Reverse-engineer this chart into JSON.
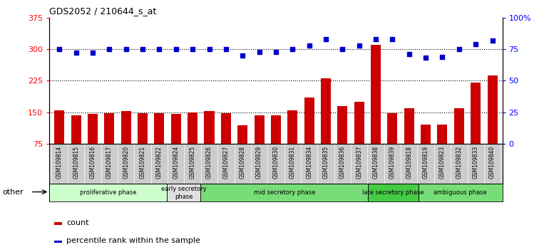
{
  "title": "GDS2052 / 210644_s_at",
  "samples": [
    "GSM109814",
    "GSM109815",
    "GSM109816",
    "GSM109817",
    "GSM109820",
    "GSM109821",
    "GSM109822",
    "GSM109824",
    "GSM109825",
    "GSM109826",
    "GSM109827",
    "GSM109828",
    "GSM109829",
    "GSM109830",
    "GSM109831",
    "GSM109834",
    "GSM109835",
    "GSM109836",
    "GSM109837",
    "GSM109838",
    "GSM109839",
    "GSM109818",
    "GSM109819",
    "GSM109823",
    "GSM109832",
    "GSM109833",
    "GSM109840"
  ],
  "counts": [
    155,
    142,
    145,
    148,
    152,
    148,
    148,
    145,
    150,
    152,
    147,
    118,
    143,
    143,
    155,
    185,
    230,
    165,
    175,
    310,
    148,
    160,
    120,
    120,
    160,
    220,
    238
  ],
  "percentiles": [
    75,
    72,
    72,
    75,
    75,
    75,
    75,
    75,
    75,
    75,
    75,
    70,
    73,
    73,
    75,
    78,
    83,
    75,
    78,
    83,
    83,
    71,
    68,
    69,
    75,
    79,
    82
  ],
  "phases": [
    {
      "label": "proliferative phase",
      "start": 0,
      "end": 7,
      "color": "#ccffcc"
    },
    {
      "label": "early secretory\nphase",
      "start": 7,
      "end": 9,
      "color": "#e0e0e0"
    },
    {
      "label": "mid secretory phase",
      "start": 9,
      "end": 19,
      "color": "#77dd77"
    },
    {
      "label": "late secretory phase",
      "start": 19,
      "end": 22,
      "color": "#44cc44"
    },
    {
      "label": "ambiguous phase",
      "start": 22,
      "end": 27,
      "color": "#77dd77"
    }
  ],
  "ylim_left": [
    75,
    375
  ],
  "ylim_right": [
    0,
    100
  ],
  "yticks_left": [
    75,
    150,
    225,
    300,
    375
  ],
  "yticks_right": [
    0,
    25,
    50,
    75,
    100
  ],
  "bar_color": "#cc0000",
  "dot_color": "#0000cc",
  "bg_color": "#cccccc",
  "plot_bg": "#ffffff",
  "legend_count_color": "#cc0000",
  "legend_pct_color": "#0000cc"
}
